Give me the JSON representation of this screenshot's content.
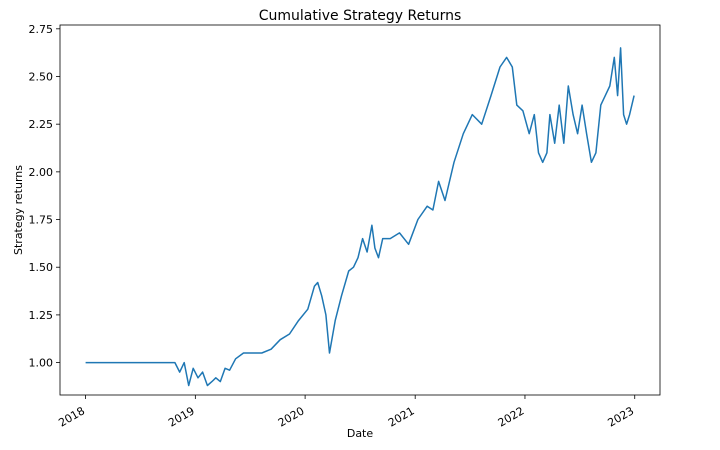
{
  "chart_data": {
    "type": "line",
    "title": "Cumulative Strategy Returns",
    "xlabel": "Date",
    "ylabel": "Strategy returns",
    "xlim": [
      "2017-10-08",
      "2023-03-26"
    ],
    "ylim": [
      0.83,
      2.77
    ],
    "grid": false,
    "x_ticks": [
      "2018",
      "2019",
      "2020",
      "2021",
      "2022",
      "2023"
    ],
    "y_ticks": [
      "1.00",
      "1.25",
      "1.50",
      "1.75",
      "2.00",
      "2.25",
      "2.50",
      "2.75"
    ],
    "series": [
      {
        "color": "#1f77b4",
        "x": [
          "2018-01-01",
          "2018-10-25",
          "2018-11-10",
          "2018-11-25",
          "2018-12-10",
          "2018-12-25",
          "2019-01-10",
          "2019-01-25",
          "2019-02-10",
          "2019-02-25",
          "2019-03-10",
          "2019-03-25",
          "2019-04-10",
          "2019-04-25",
          "2019-05-15",
          "2019-06-10",
          "2019-07-10",
          "2019-08-10",
          "2019-09-10",
          "2019-10-10",
          "2019-11-10",
          "2019-12-10",
          "2020-01-10",
          "2020-02-01",
          "2020-02-12",
          "2020-02-25",
          "2020-03-10",
          "2020-03-22",
          "2020-04-10",
          "2020-05-01",
          "2020-05-25",
          "2020-06-10",
          "2020-06-25",
          "2020-07-10",
          "2020-07-25",
          "2020-08-10",
          "2020-08-20",
          "2020-09-01",
          "2020-09-15",
          "2020-10-10",
          "2020-11-10",
          "2020-12-10",
          "2021-01-10",
          "2021-02-10",
          "2021-03-01",
          "2021-03-20",
          "2021-04-10",
          "2021-05-10",
          "2021-06-10",
          "2021-07-10",
          "2021-08-10",
          "2021-09-10",
          "2021-10-10",
          "2021-11-01",
          "2021-11-20",
          "2021-12-05",
          "2021-12-25",
          "2022-01-15",
          "2022-02-01",
          "2022-02-15",
          "2022-03-01",
          "2022-03-15",
          "2022-03-25",
          "2022-04-10",
          "2022-04-25",
          "2022-05-10",
          "2022-05-25",
          "2022-06-10",
          "2022-06-25",
          "2022-07-10",
          "2022-07-25",
          "2022-08-10",
          "2022-08-25",
          "2022-09-10",
          "2022-09-25",
          "2022-10-10",
          "2022-10-25",
          "2022-11-05",
          "2022-11-15",
          "2022-11-25",
          "2022-12-05",
          "2022-12-15",
          "2022-12-30"
        ],
        "y": [
          1.0,
          1.0,
          0.95,
          1.0,
          0.88,
          0.97,
          0.92,
          0.95,
          0.88,
          0.9,
          0.92,
          0.9,
          0.97,
          0.96,
          1.02,
          1.05,
          1.05,
          1.05,
          1.07,
          1.12,
          1.15,
          1.22,
          1.28,
          1.4,
          1.42,
          1.35,
          1.25,
          1.05,
          1.22,
          1.35,
          1.48,
          1.5,
          1.55,
          1.65,
          1.58,
          1.72,
          1.6,
          1.55,
          1.65,
          1.65,
          1.68,
          1.62,
          1.75,
          1.82,
          1.8,
          1.95,
          1.85,
          2.05,
          2.2,
          2.3,
          2.25,
          2.4,
          2.55,
          2.6,
          2.55,
          2.35,
          2.32,
          2.2,
          2.3,
          2.1,
          2.05,
          2.1,
          2.3,
          2.15,
          2.35,
          2.15,
          2.45,
          2.3,
          2.2,
          2.35,
          2.2,
          2.05,
          2.1,
          2.35,
          2.4,
          2.45,
          2.6,
          2.4,
          2.65,
          2.3,
          2.25,
          2.3,
          2.4
        ]
      }
    ]
  }
}
